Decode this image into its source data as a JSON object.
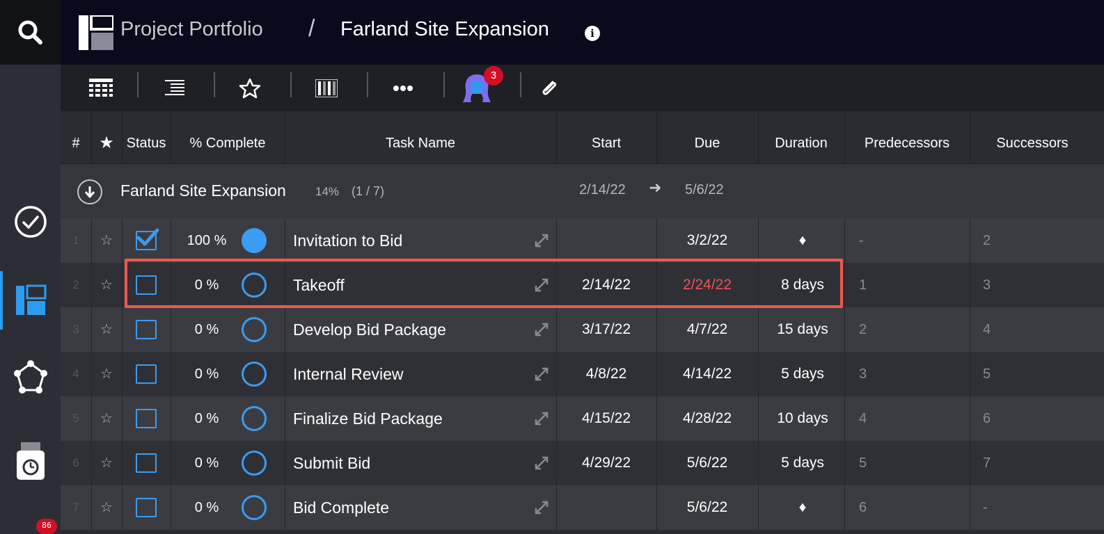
{
  "header": {
    "breadcrumb_root": "Project Portfolio",
    "breadcrumb_separator": "/",
    "breadcrumb_current": "Farland Site Expansion",
    "info_glyph": "i"
  },
  "toolbar": {
    "items": [
      {
        "icon": "grid-view-icon"
      },
      {
        "icon": "outline-view-icon"
      },
      {
        "icon": "star-icon"
      },
      {
        "icon": "columns-icon"
      },
      {
        "icon": "more-icon"
      },
      {
        "icon": "member-avatar",
        "badge": "3"
      },
      {
        "icon": "paperclip-icon"
      }
    ]
  },
  "sidebar": {
    "items": [
      {
        "icon": "search-icon"
      },
      {
        "icon": "check-circle-icon"
      },
      {
        "icon": "projects-icon",
        "active": true
      },
      {
        "icon": "network-icon"
      },
      {
        "icon": "timesheet-icon"
      }
    ],
    "bottom_badge": "86"
  },
  "columns": {
    "num": "#",
    "star": "★",
    "status": "Status",
    "pct": "% Complete",
    "name": "Task Name",
    "start": "Start",
    "due": "Due",
    "duration": "Duration",
    "predecessors": "Predecessors",
    "successors": "Successors"
  },
  "project": {
    "name": "Farland Site Expansion",
    "percent": "14%",
    "count": "(1 / 7)",
    "start": "2/14/22",
    "arrow": "➜",
    "due": "5/6/22"
  },
  "tasks": [
    {
      "num": "1",
      "star": "☆",
      "checked": true,
      "pct": "100 %",
      "progress": 1.0,
      "name": "Invitation to Bid",
      "start": "",
      "due": "3/2/22",
      "overdue": false,
      "duration": "♦",
      "pred": "-",
      "succ": "2"
    },
    {
      "num": "2",
      "star": "☆",
      "checked": false,
      "pct": "0 %",
      "progress": 0,
      "name": "Takeoff",
      "start": "2/14/22",
      "due": "2/24/22",
      "overdue": true,
      "duration": "8 days",
      "pred": "1",
      "succ": "3"
    },
    {
      "num": "3",
      "star": "☆",
      "checked": false,
      "pct": "0 %",
      "progress": 0,
      "name": "Develop Bid Package",
      "start": "3/17/22",
      "due": "4/7/22",
      "overdue": false,
      "duration": "15 days",
      "pred": "2",
      "succ": "4"
    },
    {
      "num": "4",
      "star": "☆",
      "checked": false,
      "pct": "0 %",
      "progress": 0,
      "name": "Internal Review",
      "start": "4/8/22",
      "due": "4/14/22",
      "overdue": false,
      "duration": "5 days",
      "pred": "3",
      "succ": "5"
    },
    {
      "num": "5",
      "star": "☆",
      "checked": false,
      "pct": "0 %",
      "progress": 0,
      "name": "Finalize Bid Package",
      "start": "4/15/22",
      "due": "4/28/22",
      "overdue": false,
      "duration": "10 days",
      "pred": "4",
      "succ": "6"
    },
    {
      "num": "6",
      "star": "☆",
      "checked": false,
      "pct": "0 %",
      "progress": 0,
      "name": "Submit Bid",
      "start": "4/29/22",
      "due": "5/6/22",
      "overdue": false,
      "duration": "5 days",
      "pred": "5",
      "succ": "7"
    },
    {
      "num": "7",
      "star": "☆",
      "checked": false,
      "pct": "0 %",
      "progress": 0,
      "name": "Bid Complete",
      "start": "",
      "due": "5/6/22",
      "overdue": false,
      "duration": "♦",
      "pred": "6",
      "succ": "-"
    }
  ],
  "colors": {
    "accent": "#3a9cf2",
    "overdue": "#f2515b",
    "highlight": "#f0584d",
    "badge": "#d40f25"
  }
}
